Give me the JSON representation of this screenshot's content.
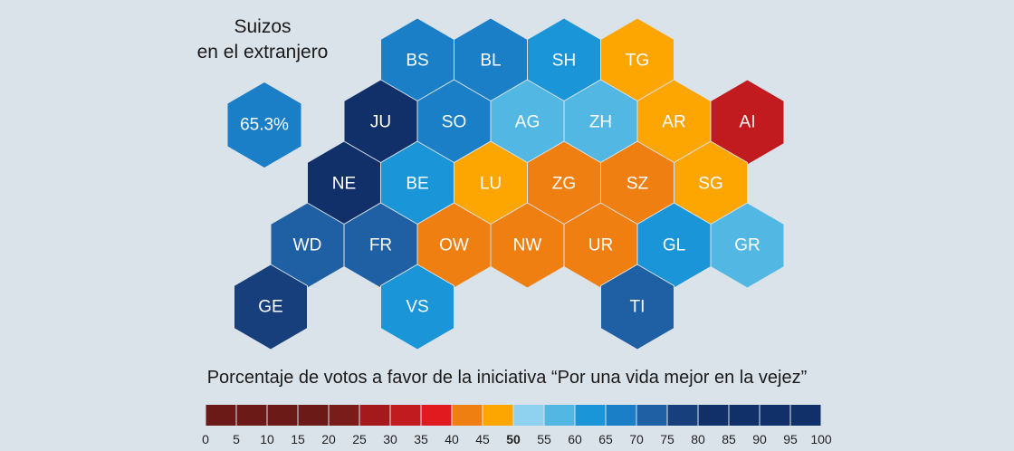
{
  "abroad": {
    "title_line1": "Suizos",
    "title_line2": "en el extranjero",
    "value_label": "65.3%",
    "value": 65.3
  },
  "cantons": [
    {
      "code": "BS",
      "row": 0,
      "col": 0,
      "value": 65
    },
    {
      "code": "BL",
      "row": 0,
      "col": 1,
      "value": 65
    },
    {
      "code": "SH",
      "row": 0,
      "col": 2,
      "value": 60
    },
    {
      "code": "TG",
      "row": 0,
      "col": 3,
      "value": 45
    },
    {
      "code": "JU",
      "row": 1,
      "col": -1,
      "value": 80
    },
    {
      "code": "SO",
      "row": 1,
      "col": 0,
      "value": 65
    },
    {
      "code": "AG",
      "row": 1,
      "col": 1,
      "value": 55
    },
    {
      "code": "ZH",
      "row": 1,
      "col": 2,
      "value": 55
    },
    {
      "code": "AR",
      "row": 1,
      "col": 3,
      "value": 45
    },
    {
      "code": "AI",
      "row": 1,
      "col": 4,
      "value": 30
    },
    {
      "code": "NE",
      "row": 2,
      "col": -1,
      "value": 80
    },
    {
      "code": "BE",
      "row": 2,
      "col": 0,
      "value": 60
    },
    {
      "code": "LU",
      "row": 2,
      "col": 1,
      "value": 45
    },
    {
      "code": "ZG",
      "row": 2,
      "col": 2,
      "value": 40
    },
    {
      "code": "SZ",
      "row": 2,
      "col": 3,
      "value": 40
    },
    {
      "code": "SG",
      "row": 2,
      "col": 4,
      "value": 45
    },
    {
      "code": "WD",
      "row": 3,
      "col": -2,
      "value": 70
    },
    {
      "code": "FR",
      "row": 3,
      "col": -1,
      "value": 70
    },
    {
      "code": "OW",
      "row": 3,
      "col": 0,
      "value": 40
    },
    {
      "code": "NW",
      "row": 3,
      "col": 1,
      "value": 40
    },
    {
      "code": "UR",
      "row": 3,
      "col": 2,
      "value": 40
    },
    {
      "code": "GL",
      "row": 3,
      "col": 3,
      "value": 60
    },
    {
      "code": "GR",
      "row": 3,
      "col": 4,
      "value": 55
    },
    {
      "code": "GE",
      "row": 4,
      "col": -2,
      "value": 75
    },
    {
      "code": "VS",
      "row": 4,
      "col": 0,
      "value": 60
    },
    {
      "code": "TI",
      "row": 4,
      "col": 3,
      "value": 70
    }
  ],
  "legend": {
    "title": "Porcentaje de votos a favor de la iniciativa “Por una vida mejor en la vejez”",
    "ticks": [
      "0",
      "5",
      "10",
      "15",
      "20",
      "25",
      "30",
      "35",
      "40",
      "45",
      "50",
      "55",
      "60",
      "65",
      "70",
      "75",
      "80",
      "85",
      "90",
      "95",
      "100"
    ],
    "bold_tick": "50",
    "colors": [
      "#6b1a17",
      "#6b1a17",
      "#6b1a17",
      "#6b1a17",
      "#7a1c1a",
      "#a4191b",
      "#c21b1f",
      "#e01a1f",
      "#f07f12",
      "#fda500",
      "#8ed2f0",
      "#52b8e3",
      "#1a96d8",
      "#1a7fc7",
      "#1f5fa3",
      "#163f7c",
      "#11306a",
      "#11306a",
      "#11306a",
      "#11306a"
    ]
  }
}
